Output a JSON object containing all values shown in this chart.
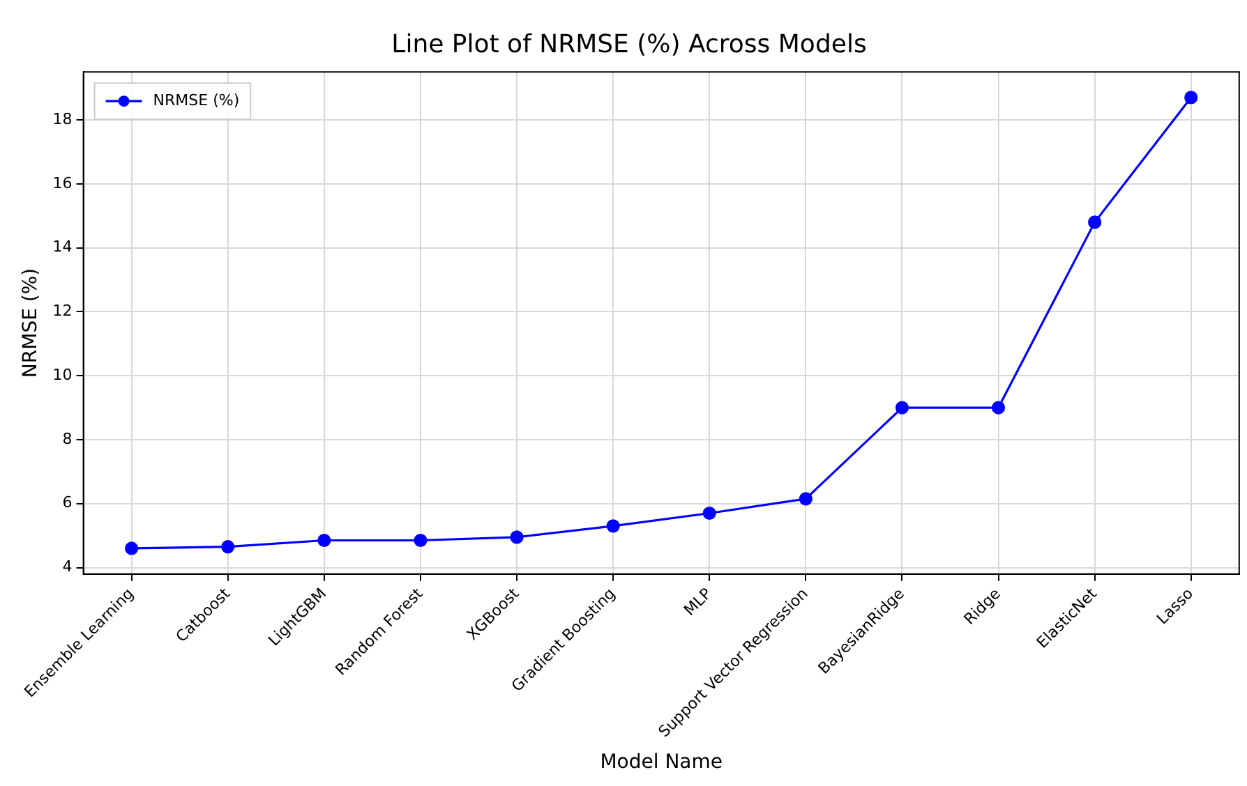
{
  "chart_data": {
    "type": "line",
    "title": "Line Plot of NRMSE (%) Across Models",
    "xlabel": "Model Name",
    "ylabel": "NRMSE (%)",
    "categories": [
      "Ensemble Learning",
      "Catboost",
      "LightGBM",
      "Random Forest",
      "XGBoost",
      "Gradient Boosting",
      "MLP",
      "Support Vector Regression",
      "BayesianRidge",
      "Ridge",
      "ElasticNet",
      "Lasso"
    ],
    "series": [
      {
        "name": "NRMSE (%)",
        "color": "#0000ff",
        "values": [
          4.6,
          4.65,
          4.85,
          4.85,
          4.95,
          5.3,
          5.7,
          6.15,
          9.0,
          9.0,
          14.8,
          18.7
        ]
      }
    ],
    "ylim": [
      3.8,
      19.5
    ],
    "yticks": [
      4,
      6,
      8,
      10,
      12,
      14,
      16,
      18
    ],
    "grid": true,
    "legend": "top left",
    "marker": "circle",
    "line_style": "solid"
  }
}
